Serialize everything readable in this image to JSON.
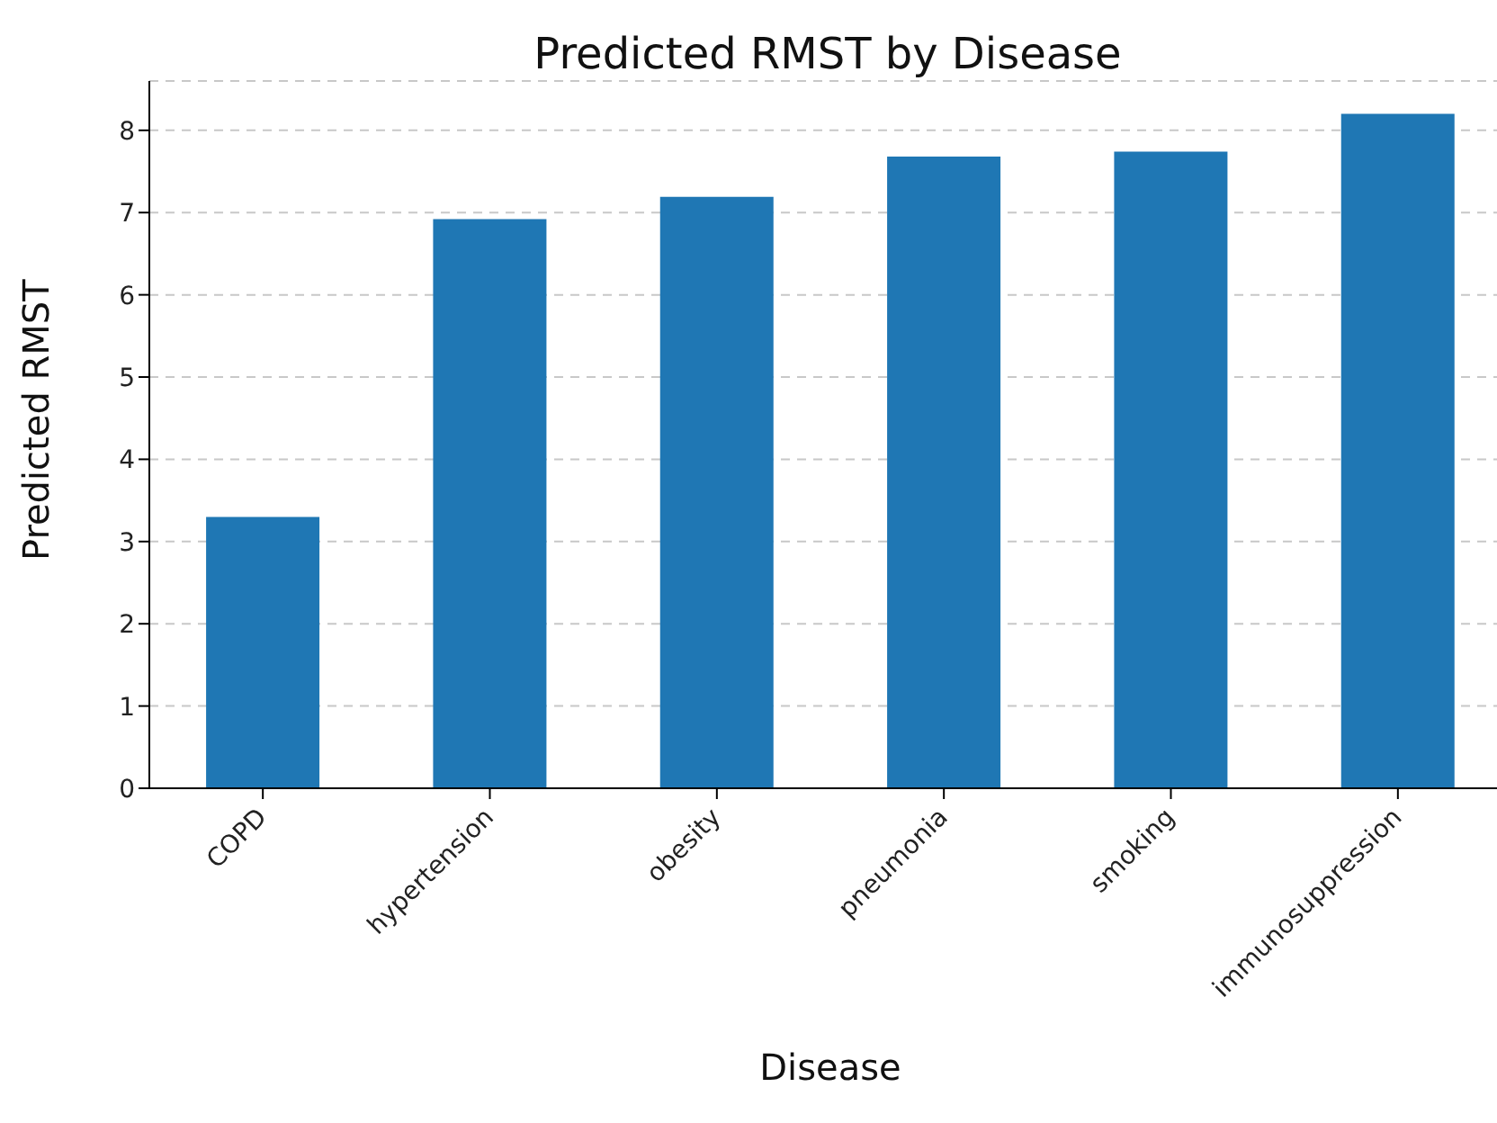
{
  "chart_data": {
    "type": "bar",
    "title": "Predicted RMST by Disease",
    "xlabel": "Disease",
    "ylabel": "Predicted RMST",
    "categories": [
      "COPD",
      "hypertension",
      "obesity",
      "pneumonia",
      "smoking",
      "immunosuppression"
    ],
    "values": [
      3.3,
      6.92,
      7.19,
      7.68,
      7.74,
      8.2
    ],
    "color": "#1f77b4",
    "ylim": [
      0,
      8.6
    ],
    "yticks": [
      0,
      1,
      2,
      3,
      4,
      5,
      6,
      7,
      8
    ],
    "grid": "y"
  }
}
